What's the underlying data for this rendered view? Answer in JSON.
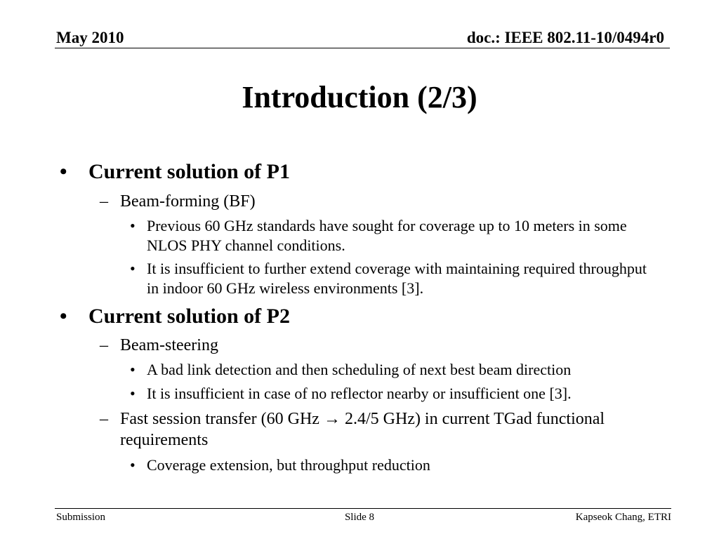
{
  "header": {
    "date": "May 2010",
    "doc": "doc.: IEEE 802.11-10/0494r0"
  },
  "title": "Introduction (2/3)",
  "content": {
    "p1": {
      "heading": "Current solution of P1",
      "sub1": "Beam-forming (BF)",
      "b1": "Previous 60 GHz standards have sought for coverage up to 10 meters in some NLOS PHY channel conditions.",
      "b2": "It is insufficient to further extend coverage with maintaining required throughput in indoor 60 GHz wireless environments [3]."
    },
    "p2": {
      "heading": "Current solution of P2",
      "sub1": "Beam-steering",
      "b1": "A bad link detection and then scheduling of next best beam direction",
      "b2": "It is insufficient in case of no reflector nearby or insufficient one [3].",
      "sub2_before": "Fast session transfer (60 GHz ",
      "sub2_arrow": "→",
      "sub2_after": " 2.4/5 GHz) in current TGad functional requirements",
      "b3": "Coverage extension, but throughput reduction"
    }
  },
  "footer": {
    "left": "Submission",
    "center": "Slide 8",
    "right": "Kapseok Chang, ETRI"
  }
}
